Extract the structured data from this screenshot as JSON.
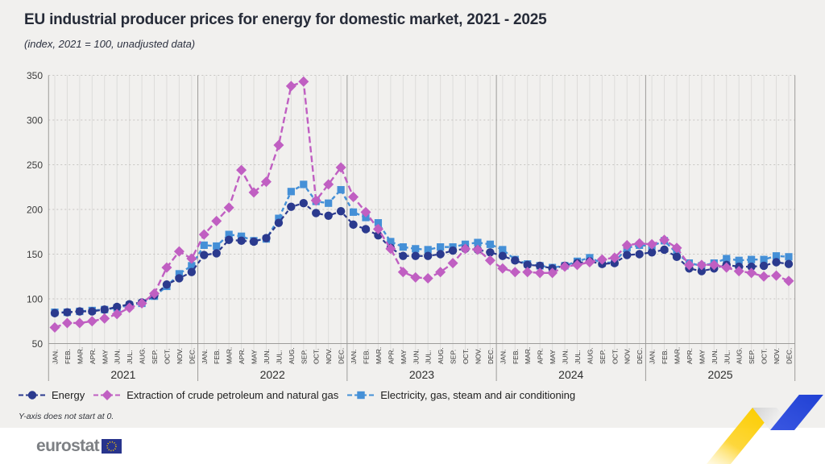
{
  "header": {
    "title": "EU industrial producer prices for energy for domestic market, 2021 - 2025",
    "subtitle": "(index, 2021 = 100, unadjusted data)"
  },
  "footnote": "Y-axis does not start at 0.",
  "branding": {
    "logo_text": "eurostat"
  },
  "chart_data": {
    "type": "line",
    "title": "EU industrial producer prices for energy for domestic market, 2021 - 2025",
    "subtitle": "(index, 2021 = 100, unadjusted data)",
    "ylim": [
      50,
      350
    ],
    "y_ticks": [
      50,
      100,
      150,
      200,
      250,
      300,
      350
    ],
    "grid": true,
    "legend_position": "bottom",
    "years": [
      "2021",
      "2022",
      "2023",
      "2024",
      "2025"
    ],
    "months": [
      "JAN.",
      "FEB.",
      "MAR.",
      "APR.",
      "MAY",
      "JUN.",
      "JUL.",
      "AUG.",
      "SEP.",
      "OCT.",
      "NOV.",
      "DEC."
    ],
    "series": [
      {
        "name": "Energy",
        "marker": "circle",
        "color": "#2b3a8e",
        "values": [
          84,
          85,
          86,
          86,
          88,
          91,
          94,
          96,
          104,
          116,
          123,
          130,
          149,
          151,
          166,
          165,
          164,
          168,
          185,
          203,
          207,
          196,
          193,
          198,
          183,
          178,
          171,
          157,
          148,
          148,
          148,
          150,
          154,
          156,
          155,
          152,
          148,
          143,
          138,
          137,
          134,
          137,
          140,
          142,
          139,
          140,
          149,
          150,
          152,
          155,
          147,
          134,
          131,
          134,
          138,
          136,
          136,
          137,
          141,
          139
        ]
      },
      {
        "name": "Extraction of crude petroleum and natural gas",
        "marker": "diamond",
        "color": "#c05fc2",
        "values": [
          68,
          73,
          73,
          75,
          78,
          83,
          90,
          95,
          106,
          135,
          153,
          145,
          172,
          187,
          202,
          244,
          219,
          231,
          272,
          338,
          343,
          210,
          228,
          247,
          214,
          197,
          178,
          156,
          130,
          124,
          123,
          130,
          140,
          156,
          155,
          143,
          134,
          130,
          130,
          129,
          129,
          136,
          138,
          141,
          144,
          146,
          160,
          162,
          161,
          166,
          157,
          138,
          138,
          138,
          135,
          131,
          129,
          125,
          126,
          120
        ]
      },
      {
        "name": "Electricity, gas, steam and air conditioning",
        "marker": "square",
        "color": "#4590d7",
        "values": [
          85,
          85,
          86,
          87,
          88,
          90,
          93,
          95,
          103,
          114,
          128,
          137,
          160,
          159,
          172,
          170,
          165,
          167,
          190,
          220,
          228,
          209,
          207,
          222,
          197,
          191,
          185,
          164,
          158,
          156,
          155,
          158,
          158,
          161,
          163,
          161,
          155,
          144,
          139,
          137,
          135,
          137,
          142,
          146,
          140,
          141,
          157,
          160,
          159,
          165,
          151,
          140,
          137,
          140,
          145,
          143,
          144,
          144,
          148,
          147
        ]
      }
    ]
  },
  "colors": {
    "background": "#f1f0ee",
    "grid_vertical": "#dddcda",
    "grid_horizontal": "#c6c5c2",
    "axis": "#9d9c9a",
    "tick_text": "#3b3b3b",
    "flag_blue": "#28348d",
    "flag_stars": "#ffcc00",
    "ribbon_yellow": "#fcce00",
    "ribbon_blue": "#2444d4"
  }
}
